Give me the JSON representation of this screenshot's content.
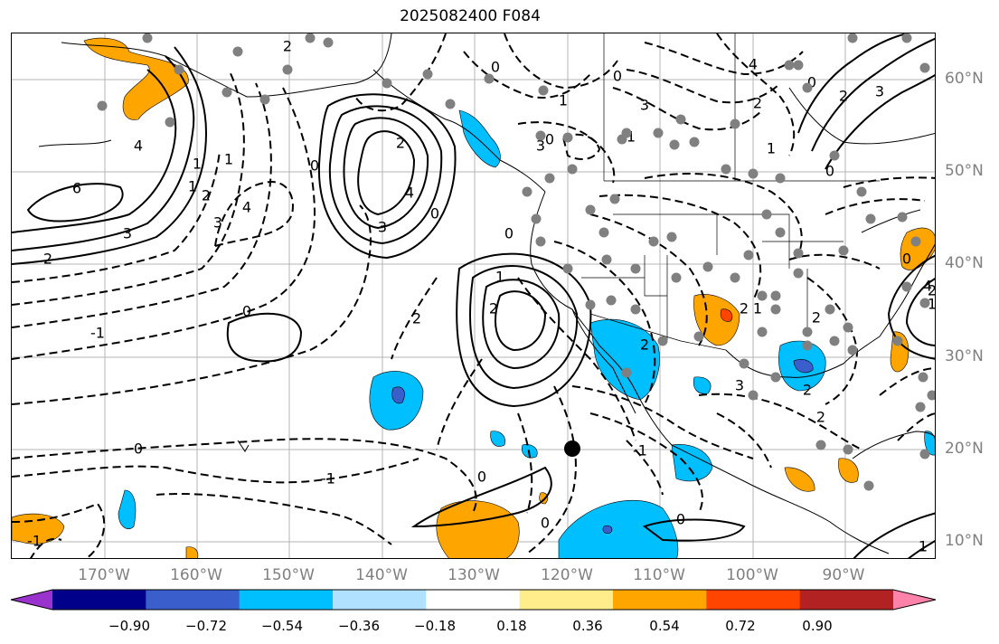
{
  "title": "2025082400 F084",
  "lat_labels": [
    "60°N",
    "50°N",
    "40°N",
    "30°N",
    "20°N",
    "10°N"
  ],
  "lon_labels": [
    "170°W",
    "160°W",
    "150°W",
    "140°W",
    "130°W",
    "120°W",
    "110°W",
    "100°W",
    "90°W"
  ],
  "colorbar": {
    "labels": [
      "−0.90",
      "−0.72",
      "−0.54",
      "−0.36",
      "−0.18",
      "0.18",
      "0.36",
      "0.54",
      "0.72",
      "0.90"
    ],
    "colors": [
      "#9a32cd",
      "#00008b",
      "#3a5fcd",
      "#00bfff",
      "#b0e2ff",
      "#ffffff",
      "#ffec8b",
      "#ffa500",
      "#ff4500",
      "#b22222",
      "#ff82ab"
    ]
  },
  "contour_labels": [
    "6",
    "3",
    "2",
    "4",
    "4",
    "1",
    "2",
    "3",
    "1",
    "1",
    "0",
    "2",
    "0",
    "3",
    "4",
    "2",
    "0",
    "1",
    "0",
    "2",
    "3",
    "0",
    "1",
    "0",
    "0",
    "1",
    "2",
    "3",
    "4",
    "1",
    "2",
    "0",
    "0",
    "3",
    "0",
    "2",
    "2",
    "1",
    "3",
    "2",
    "2",
    "2",
    "4",
    "2",
    "1",
    "-1",
    "-1",
    "0",
    "-1",
    "0",
    "0",
    "-1",
    "0",
    "2",
    "1"
  ],
  "colors": {
    "station": "#808080",
    "marker": "#000000",
    "grid": "#b4b4b4",
    "label": "#808080"
  }
}
